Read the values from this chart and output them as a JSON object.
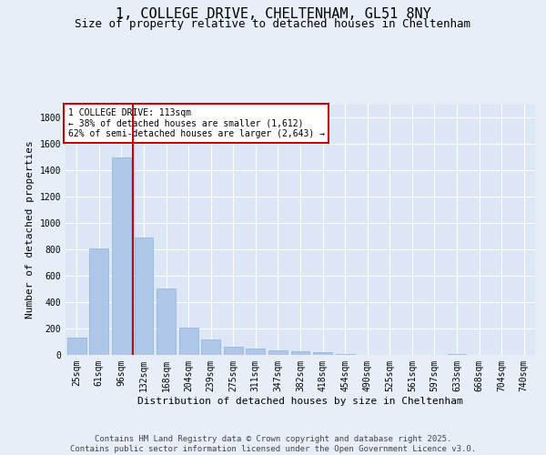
{
  "title_line1": "1, COLLEGE DRIVE, CHELTENHAM, GL51 8NY",
  "title_line2": "Size of property relative to detached houses in Cheltenham",
  "xlabel": "Distribution of detached houses by size in Cheltenham",
  "ylabel": "Number of detached properties",
  "categories": [
    "25sqm",
    "61sqm",
    "96sqm",
    "132sqm",
    "168sqm",
    "204sqm",
    "239sqm",
    "275sqm",
    "311sqm",
    "347sqm",
    "382sqm",
    "418sqm",
    "454sqm",
    "490sqm",
    "525sqm",
    "561sqm",
    "597sqm",
    "633sqm",
    "668sqm",
    "704sqm",
    "740sqm"
  ],
  "values": [
    130,
    805,
    1500,
    890,
    505,
    210,
    115,
    65,
    47,
    33,
    27,
    20,
    5,
    0,
    0,
    0,
    0,
    10,
    0,
    0,
    0
  ],
  "bar_color": "#aec6e8",
  "bar_edge_color": "#8ab4d8",
  "vline_x_index": 2,
  "vline_color": "#cc0000",
  "annotation_text": "1 COLLEGE DRIVE: 113sqm\n← 38% of detached houses are smaller (1,612)\n62% of semi-detached houses are larger (2,643) →",
  "annotation_box_edgecolor": "#cc0000",
  "annotation_bg": "#ffffff",
  "ylim": [
    0,
    1900
  ],
  "yticks": [
    0,
    200,
    400,
    600,
    800,
    1000,
    1200,
    1400,
    1600,
    1800
  ],
  "background_color": "#e8eef8",
  "plot_bg_color": "#dde6f5",
  "footer_text": "Contains HM Land Registry data © Crown copyright and database right 2025.\nContains public sector information licensed under the Open Government Licence v3.0.",
  "title_fontsize": 11,
  "subtitle_fontsize": 9,
  "axis_label_fontsize": 8,
  "tick_fontsize": 7,
  "annotation_fontsize": 7,
  "footer_fontsize": 6.5
}
